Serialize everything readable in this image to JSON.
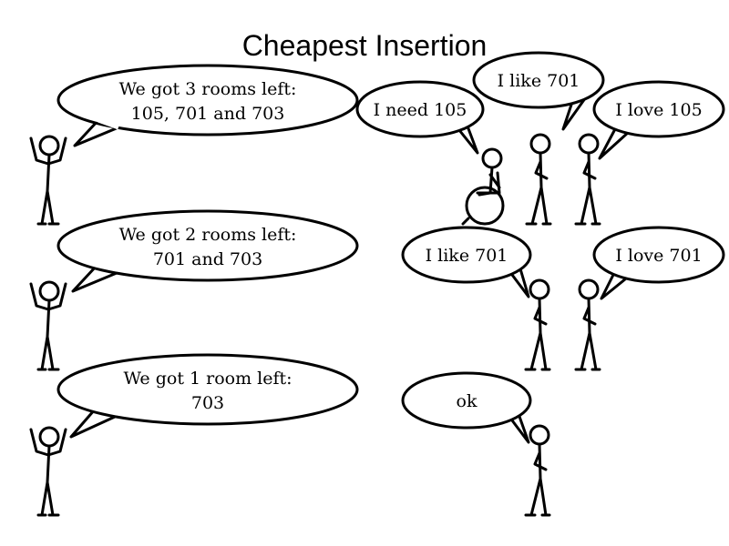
{
  "title": "Cheapest Insertion",
  "scenes": [
    {
      "host": [
        "We got 3 rooms left:",
        "105, 701 and 703"
      ],
      "guests": [
        "I need 105",
        "I like 701",
        "I love 105"
      ]
    },
    {
      "host": [
        "We got 2 rooms left:",
        "701 and 703"
      ],
      "guests": [
        "I like 701",
        "I love 701"
      ]
    },
    {
      "host": [
        "We got 1 room left:",
        "703"
      ],
      "guests": [
        "ok"
      ]
    }
  ]
}
